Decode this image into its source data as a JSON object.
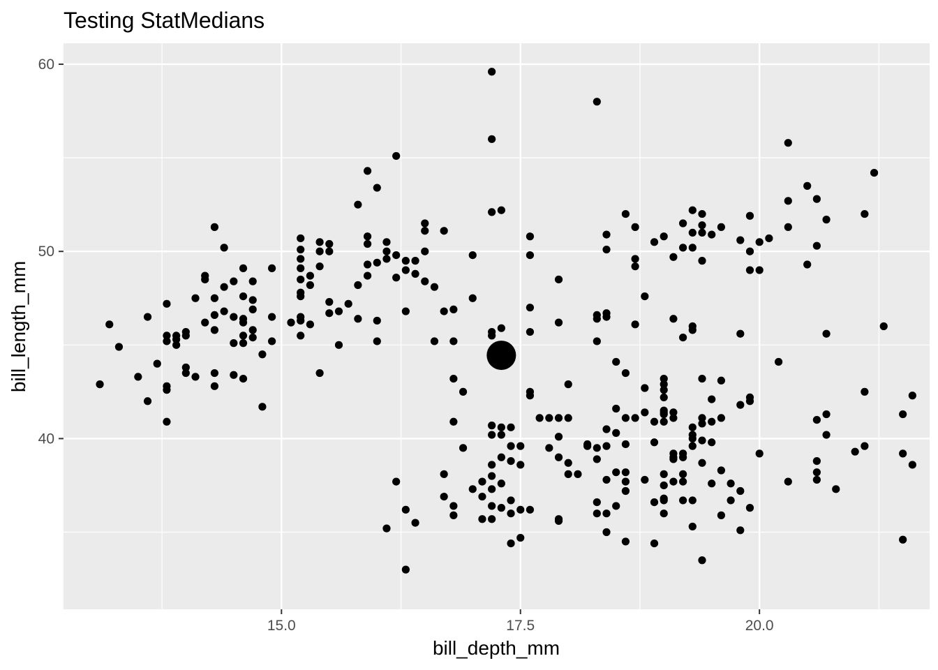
{
  "chart_data": {
    "type": "scatter",
    "title": "Testing StatMedians",
    "xlabel": "bill_depth_mm",
    "ylabel": "bill_length_mm",
    "xlim": [
      12.72,
      21.78
    ],
    "ylim": [
      30.88,
      61.12
    ],
    "x_ticks": [
      15.0,
      17.5,
      20.0
    ],
    "x_tick_labels": [
      "15.0",
      "17.5",
      "20.0"
    ],
    "y_ticks": [
      40,
      50,
      60
    ],
    "y_tick_labels": [
      "40",
      "50",
      "60"
    ],
    "grid": true,
    "background": "#ebebeb",
    "point_color": "#000000",
    "median_point": {
      "x": 17.3,
      "y": 44.45
    },
    "points": [
      [
        13.1,
        42.9
      ],
      [
        13.2,
        46.1
      ],
      [
        13.3,
        44.9
      ],
      [
        13.5,
        43.3
      ],
      [
        13.6,
        42.0
      ],
      [
        13.6,
        46.5
      ],
      [
        13.7,
        44.0
      ],
      [
        13.8,
        40.9
      ],
      [
        13.8,
        42.6
      ],
      [
        13.8,
        42.8
      ],
      [
        13.8,
        45.2
      ],
      [
        13.8,
        45.5
      ],
      [
        13.8,
        47.2
      ],
      [
        13.9,
        45.0
      ],
      [
        13.9,
        45.3
      ],
      [
        13.9,
        45.5
      ],
      [
        14.0,
        43.5
      ],
      [
        14.0,
        43.8
      ],
      [
        14.0,
        45.5
      ],
      [
        14.0,
        45.7
      ],
      [
        14.1,
        43.3
      ],
      [
        14.1,
        47.5
      ],
      [
        14.2,
        46.2
      ],
      [
        14.2,
        48.5
      ],
      [
        14.2,
        48.7
      ],
      [
        14.3,
        42.8
      ],
      [
        14.3,
        43.5
      ],
      [
        14.3,
        45.8
      ],
      [
        14.3,
        46.6
      ],
      [
        14.3,
        47.5
      ],
      [
        14.3,
        51.3
      ],
      [
        14.4,
        46.8
      ],
      [
        14.4,
        48.1
      ],
      [
        14.4,
        50.2
      ],
      [
        14.5,
        43.4
      ],
      [
        14.5,
        45.1
      ],
      [
        14.5,
        46.5
      ],
      [
        14.5,
        48.4
      ],
      [
        14.6,
        43.2
      ],
      [
        14.6,
        45.1
      ],
      [
        14.6,
        45.5
      ],
      [
        14.6,
        46.2
      ],
      [
        14.6,
        46.4
      ],
      [
        14.6,
        47.6
      ],
      [
        14.6,
        49.1
      ],
      [
        14.7,
        45.4
      ],
      [
        14.7,
        45.8
      ],
      [
        14.7,
        46.9
      ],
      [
        14.7,
        47.4
      ],
      [
        14.7,
        48.4
      ],
      [
        14.8,
        41.7
      ],
      [
        14.8,
        44.5
      ],
      [
        14.9,
        45.2
      ],
      [
        14.9,
        46.5
      ],
      [
        14.9,
        49.1
      ],
      [
        15.1,
        46.2
      ],
      [
        15.2,
        45.5
      ],
      [
        15.2,
        46.3
      ],
      [
        15.2,
        46.5
      ],
      [
        15.2,
        47.6
      ],
      [
        15.2,
        47.8
      ],
      [
        15.2,
        48.5
      ],
      [
        15.2,
        49.1
      ],
      [
        15.2,
        49.6
      ],
      [
        15.2,
        50.1
      ],
      [
        15.2,
        50.7
      ],
      [
        15.3,
        46.1
      ],
      [
        15.3,
        48.2
      ],
      [
        15.3,
        48.7
      ],
      [
        15.4,
        43.5
      ],
      [
        15.4,
        49.2
      ],
      [
        15.4,
        50.0
      ],
      [
        15.4,
        50.5
      ],
      [
        15.5,
        46.7
      ],
      [
        15.5,
        47.3
      ],
      [
        15.5,
        50.0
      ],
      [
        15.5,
        50.4
      ],
      [
        15.6,
        45.0
      ],
      [
        15.6,
        46.8
      ],
      [
        15.7,
        47.2
      ],
      [
        15.8,
        46.4
      ],
      [
        15.8,
        48.2
      ],
      [
        15.8,
        52.5
      ],
      [
        15.9,
        48.7
      ],
      [
        15.9,
        49.3
      ],
      [
        15.9,
        50.4
      ],
      [
        15.9,
        50.8
      ],
      [
        15.9,
        54.3
      ],
      [
        16.0,
        45.2
      ],
      [
        16.0,
        46.3
      ],
      [
        16.0,
        49.4
      ],
      [
        16.0,
        53.4
      ],
      [
        16.1,
        35.2
      ],
      [
        16.1,
        49.6
      ],
      [
        16.1,
        50.0
      ],
      [
        16.1,
        50.5
      ],
      [
        16.2,
        37.7
      ],
      [
        16.2,
        48.6
      ],
      [
        16.2,
        49.8
      ],
      [
        16.2,
        55.1
      ],
      [
        16.3,
        33.0
      ],
      [
        16.3,
        36.2
      ],
      [
        16.3,
        46.8
      ],
      [
        16.3,
        49.0
      ],
      [
        16.3,
        49.5
      ],
      [
        16.4,
        35.5
      ],
      [
        16.4,
        48.8
      ],
      [
        16.4,
        49.5
      ],
      [
        16.5,
        48.4
      ],
      [
        16.5,
        50.0
      ],
      [
        16.5,
        51.1
      ],
      [
        16.5,
        51.5
      ],
      [
        16.6,
        45.2
      ],
      [
        16.6,
        48.1
      ],
      [
        16.7,
        36.9
      ],
      [
        16.7,
        38.1
      ],
      [
        16.7,
        46.8
      ],
      [
        16.7,
        51.1
      ],
      [
        16.8,
        35.9
      ],
      [
        16.8,
        36.4
      ],
      [
        16.8,
        40.9
      ],
      [
        16.8,
        43.2
      ],
      [
        16.8,
        45.2
      ],
      [
        16.8,
        46.9
      ],
      [
        16.9,
        39.5
      ],
      [
        16.9,
        42.5
      ],
      [
        17.0,
        37.3
      ],
      [
        17.0,
        47.5
      ],
      [
        17.0,
        49.8
      ],
      [
        17.1,
        35.7
      ],
      [
        17.1,
        36.9
      ],
      [
        17.2,
        35.7
      ],
      [
        17.2,
        36.4
      ],
      [
        17.2,
        37.3
      ],
      [
        17.2,
        38.0
      ],
      [
        17.2,
        38.6
      ],
      [
        17.2,
        40.2
      ],
      [
        17.2,
        40.7
      ],
      [
        17.2,
        45.5
      ],
      [
        17.2,
        45.7
      ],
      [
        17.2,
        52.1
      ],
      [
        17.2,
        56.0
      ],
      [
        17.2,
        59.6
      ],
      [
        17.3,
        36.3
      ],
      [
        17.3,
        37.6
      ],
      [
        17.3,
        39.0
      ],
      [
        17.3,
        40.2
      ],
      [
        17.3,
        40.6
      ],
      [
        17.3,
        45.9
      ],
      [
        17.3,
        52.2
      ],
      [
        17.4,
        34.4
      ],
      [
        17.4,
        36.0
      ],
      [
        17.4,
        36.7
      ],
      [
        17.4,
        38.8
      ],
      [
        17.4,
        39.6
      ],
      [
        17.4,
        40.6
      ],
      [
        17.5,
        34.7
      ],
      [
        17.5,
        36.2
      ],
      [
        17.5,
        38.6
      ],
      [
        17.5,
        39.6
      ],
      [
        17.6,
        36.2
      ],
      [
        17.6,
        42.3
      ],
      [
        17.6,
        42.5
      ],
      [
        17.6,
        45.7
      ],
      [
        17.6,
        47.0
      ],
      [
        17.6,
        49.8
      ],
      [
        17.6,
        50.8
      ],
      [
        17.8,
        39.5
      ],
      [
        17.9,
        35.6
      ],
      [
        17.9,
        35.7
      ],
      [
        17.9,
        39.0
      ],
      [
        17.9,
        41.1
      ],
      [
        17.9,
        46.2
      ],
      [
        17.9,
        48.5
      ],
      [
        18.0,
        38.1
      ],
      [
        18.0,
        38.7
      ],
      [
        18.0,
        41.1
      ],
      [
        18.0,
        42.9
      ],
      [
        18.2,
        39.6
      ],
      [
        18.2,
        39.7
      ],
      [
        18.3,
        36.0
      ],
      [
        18.3,
        36.6
      ],
      [
        18.3,
        38.9
      ],
      [
        18.3,
        39.5
      ],
      [
        18.3,
        45.2
      ],
      [
        18.3,
        46.4
      ],
      [
        18.3,
        46.6
      ],
      [
        18.3,
        58.0
      ],
      [
        18.4,
        35.0
      ],
      [
        18.4,
        36.0
      ],
      [
        18.4,
        37.8
      ],
      [
        18.4,
        39.6
      ],
      [
        18.4,
        40.5
      ],
      [
        18.4,
        46.5
      ],
      [
        18.4,
        46.7
      ],
      [
        18.4,
        50.1
      ],
      [
        18.4,
        50.9
      ],
      [
        18.5,
        36.4
      ],
      [
        18.5,
        38.2
      ],
      [
        18.5,
        40.3
      ],
      [
        18.5,
        41.6
      ],
      [
        18.5,
        44.1
      ],
      [
        18.6,
        34.5
      ],
      [
        18.6,
        37.2
      ],
      [
        18.6,
        37.7
      ],
      [
        18.6,
        38.2
      ],
      [
        18.6,
        39.7
      ],
      [
        18.6,
        41.1
      ],
      [
        18.6,
        43.5
      ],
      [
        18.6,
        52.0
      ],
      [
        18.7,
        41.1
      ],
      [
        18.7,
        46.1
      ],
      [
        18.7,
        49.2
      ],
      [
        18.7,
        49.6
      ],
      [
        18.7,
        51.3
      ],
      [
        18.8,
        37.8
      ],
      [
        18.8,
        41.4
      ],
      [
        18.8,
        42.7
      ],
      [
        18.8,
        47.6
      ],
      [
        18.9,
        34.4
      ],
      [
        18.9,
        36.6
      ],
      [
        18.9,
        39.8
      ],
      [
        18.9,
        40.9
      ],
      [
        18.9,
        50.5
      ],
      [
        19.0,
        36.0
      ],
      [
        19.0,
        36.7
      ],
      [
        19.0,
        36.8
      ],
      [
        19.0,
        37.5
      ],
      [
        19.0,
        38.1
      ],
      [
        19.0,
        40.9
      ],
      [
        19.0,
        41.3
      ],
      [
        19.0,
        41.4
      ],
      [
        19.0,
        41.5
      ],
      [
        19.0,
        42.2
      ],
      [
        19.0,
        42.6
      ],
      [
        19.0,
        42.9
      ],
      [
        19.0,
        43.2
      ],
      [
        19.0,
        50.8
      ],
      [
        19.1,
        37.7
      ],
      [
        19.1,
        38.9
      ],
      [
        19.1,
        39.0
      ],
      [
        19.1,
        39.2
      ],
      [
        19.1,
        41.1
      ],
      [
        19.1,
        41.4
      ],
      [
        19.1,
        46.4
      ],
      [
        19.1,
        49.7
      ],
      [
        19.2,
        36.7
      ],
      [
        19.2,
        37.7
      ],
      [
        19.2,
        38.1
      ],
      [
        19.2,
        39.0
      ],
      [
        19.2,
        39.2
      ],
      [
        19.2,
        45.4
      ],
      [
        19.2,
        50.2
      ],
      [
        19.2,
        51.5
      ],
      [
        19.3,
        35.3
      ],
      [
        19.3,
        36.7
      ],
      [
        19.3,
        39.6
      ],
      [
        19.3,
        40.0
      ],
      [
        19.3,
        40.2
      ],
      [
        19.3,
        40.6
      ],
      [
        19.3,
        45.8
      ],
      [
        19.3,
        46.0
      ],
      [
        19.3,
        50.2
      ],
      [
        19.3,
        51.0
      ],
      [
        19.3,
        52.2
      ],
      [
        19.4,
        33.5
      ],
      [
        19.4,
        38.7
      ],
      [
        19.4,
        39.9
      ],
      [
        19.4,
        40.8
      ],
      [
        19.4,
        41.1
      ],
      [
        19.4,
        43.2
      ],
      [
        19.4,
        49.5
      ],
      [
        19.4,
        51.0
      ],
      [
        19.4,
        51.4
      ],
      [
        19.4,
        52.0
      ],
      [
        19.5,
        37.6
      ],
      [
        19.5,
        39.8
      ],
      [
        19.5,
        40.9
      ],
      [
        19.5,
        42.1
      ],
      [
        19.5,
        50.9
      ],
      [
        19.6,
        35.9
      ],
      [
        19.6,
        38.3
      ],
      [
        19.6,
        41.1
      ],
      [
        19.6,
        43.1
      ],
      [
        19.6,
        51.3
      ],
      [
        19.7,
        37.6
      ],
      [
        19.7,
        36.7
      ],
      [
        19.8,
        35.1
      ],
      [
        19.8,
        37.2
      ],
      [
        19.8,
        41.8
      ],
      [
        19.8,
        45.6
      ],
      [
        19.8,
        50.6
      ],
      [
        19.9,
        36.3
      ],
      [
        19.9,
        42.0
      ],
      [
        19.9,
        42.2
      ],
      [
        19.9,
        49.0
      ],
      [
        19.9,
        50.0
      ],
      [
        19.9,
        51.9
      ],
      [
        20.0,
        39.2
      ],
      [
        20.0,
        49.0
      ],
      [
        20.0,
        50.5
      ],
      [
        20.1,
        50.7
      ],
      [
        20.2,
        44.1
      ],
      [
        20.3,
        37.7
      ],
      [
        20.3,
        51.3
      ],
      [
        20.3,
        52.7
      ],
      [
        20.3,
        55.8
      ],
      [
        20.5,
        49.3
      ],
      [
        20.5,
        53.5
      ],
      [
        20.6,
        50.3
      ],
      [
        20.6,
        52.8
      ],
      [
        20.6,
        37.8
      ],
      [
        20.6,
        38.2
      ],
      [
        20.6,
        38.8
      ],
      [
        20.6,
        41.0
      ],
      [
        20.7,
        40.2
      ],
      [
        20.7,
        45.6
      ],
      [
        20.7,
        41.3
      ],
      [
        20.7,
        51.7
      ],
      [
        20.8,
        37.3
      ],
      [
        21.0,
        39.3
      ],
      [
        21.1,
        39.6
      ],
      [
        21.1,
        42.5
      ],
      [
        21.1,
        52.0
      ],
      [
        21.2,
        54.2
      ],
      [
        21.5,
        34.6
      ],
      [
        21.5,
        39.2
      ],
      [
        21.5,
        41.3
      ],
      [
        21.6,
        38.6
      ],
      [
        21.6,
        42.3
      ],
      [
        21.3,
        46.0
      ],
      [
        17.8,
        41.1
      ],
      [
        17.9,
        40.1
      ],
      [
        17.7,
        41.1
      ],
      [
        18.1,
        38.1
      ],
      [
        17.1,
        37.7
      ]
    ]
  }
}
